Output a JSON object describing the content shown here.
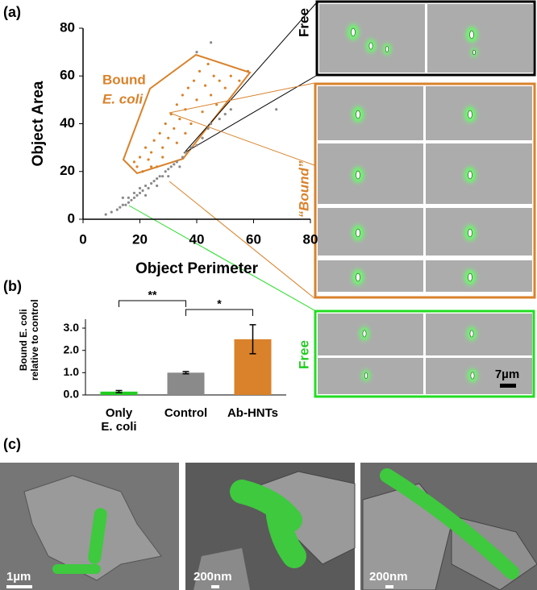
{
  "panel_labels": [
    "(a)",
    "(b)",
    "(c)"
  ],
  "micrographs": {
    "free_top": "Free",
    "bound": "“Bound”",
    "free_bottom": "Free",
    "scale": "7µm"
  },
  "sem": {
    "scale_bars": [
      "1µm",
      "200nm",
      "200nm"
    ]
  },
  "chart_data": [
    {
      "type": "scatter",
      "xlabel": "Object Perimeter",
      "ylabel": "Object Area",
      "annotations": [
        "Bound",
        "E. coli"
      ],
      "xlim": [
        0,
        80
      ],
      "ylim": [
        0,
        80
      ],
      "xticks": [
        0,
        20,
        40,
        60,
        80
      ],
      "yticks": [
        0,
        20,
        40,
        60,
        80
      ],
      "series": [
        {
          "color": "#8a8a8a",
          "x": [
            8,
            10,
            12,
            13,
            14,
            15,
            16,
            16,
            17,
            18,
            18,
            19,
            20,
            20,
            21,
            22,
            23,
            24,
            25,
            26,
            27,
            28,
            29,
            30,
            31,
            32,
            33,
            35,
            36,
            38,
            40,
            42,
            44,
            45,
            48,
            50,
            52,
            40,
            45,
            68,
            14,
            22,
            26,
            30,
            34
          ],
          "values": [
            2,
            3,
            4,
            5,
            6,
            6,
            7,
            9,
            8,
            9,
            11,
            10,
            11,
            13,
            12,
            14,
            13,
            15,
            16,
            17,
            18,
            18,
            20,
            21,
            22,
            23,
            24,
            26,
            28,
            30,
            31,
            34,
            38,
            40,
            42,
            44,
            46,
            70,
            74,
            46,
            9,
            10,
            14,
            18,
            22
          ]
        },
        {
          "color": "#d9822b",
          "x": [
            18,
            19,
            20,
            21,
            22,
            23,
            24,
            25,
            26,
            27,
            28,
            29,
            30,
            31,
            32,
            33,
            34,
            35,
            36,
            37,
            38,
            39,
            40,
            41,
            42,
            43,
            44,
            45,
            46,
            47,
            48,
            50,
            52,
            55,
            58,
            36,
            33,
            28,
            24
          ],
          "values": [
            24,
            22,
            26,
            20,
            30,
            25,
            28,
            33,
            22,
            36,
            30,
            40,
            34,
            44,
            38,
            48,
            42,
            52,
            46,
            55,
            40,
            58,
            50,
            62,
            45,
            56,
            65,
            52,
            60,
            48,
            58,
            55,
            60,
            58,
            62,
            36,
            32,
            26,
            22
          ]
        }
      ]
    },
    {
      "type": "bar",
      "ylabel": "Bound E. coli\nrelative to control",
      "categories": [
        "Only\nE. coli",
        "Control",
        "Ab-HNTs"
      ],
      "values": [
        0.15,
        1.0,
        2.5
      ],
      "errors": [
        0.05,
        0.05,
        0.65
      ],
      "colors": [
        "#22cc22",
        "#8a8a8a",
        "#d9822b"
      ],
      "ylim": [
        0,
        3.4
      ],
      "yticks": [
        {
          "value": 0,
          "label": "0.0"
        },
        {
          "value": 1,
          "label": "1.0"
        },
        {
          "value": 2,
          "label": "2.0"
        },
        {
          "value": 3,
          "label": "3.0"
        }
      ],
      "significance": [
        "**",
        "*"
      ]
    }
  ]
}
